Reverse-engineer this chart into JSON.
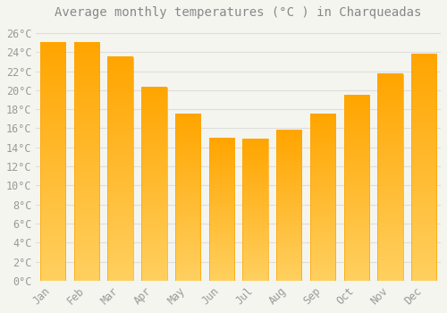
{
  "title": "Average monthly temperatures (°C ) in Charqueadas",
  "months": [
    "Jan",
    "Feb",
    "Mar",
    "Apr",
    "May",
    "Jun",
    "Jul",
    "Aug",
    "Sep",
    "Oct",
    "Nov",
    "Dec"
  ],
  "values": [
    25.0,
    25.0,
    23.5,
    20.3,
    17.5,
    15.0,
    14.9,
    15.8,
    17.5,
    19.5,
    21.7,
    23.8
  ],
  "bar_color_top": "#FFA500",
  "bar_color_bottom": "#FFD060",
  "background_color": "#F5F5F0",
  "grid_color": "#DDDDDD",
  "text_color": "#999999",
  "title_color": "#888888",
  "ylim": [
    0,
    27
  ],
  "yticks": [
    0,
    2,
    4,
    6,
    8,
    10,
    12,
    14,
    16,
    18,
    20,
    22,
    24,
    26
  ],
  "title_fontsize": 10,
  "tick_fontsize": 8.5,
  "bar_width": 0.75
}
